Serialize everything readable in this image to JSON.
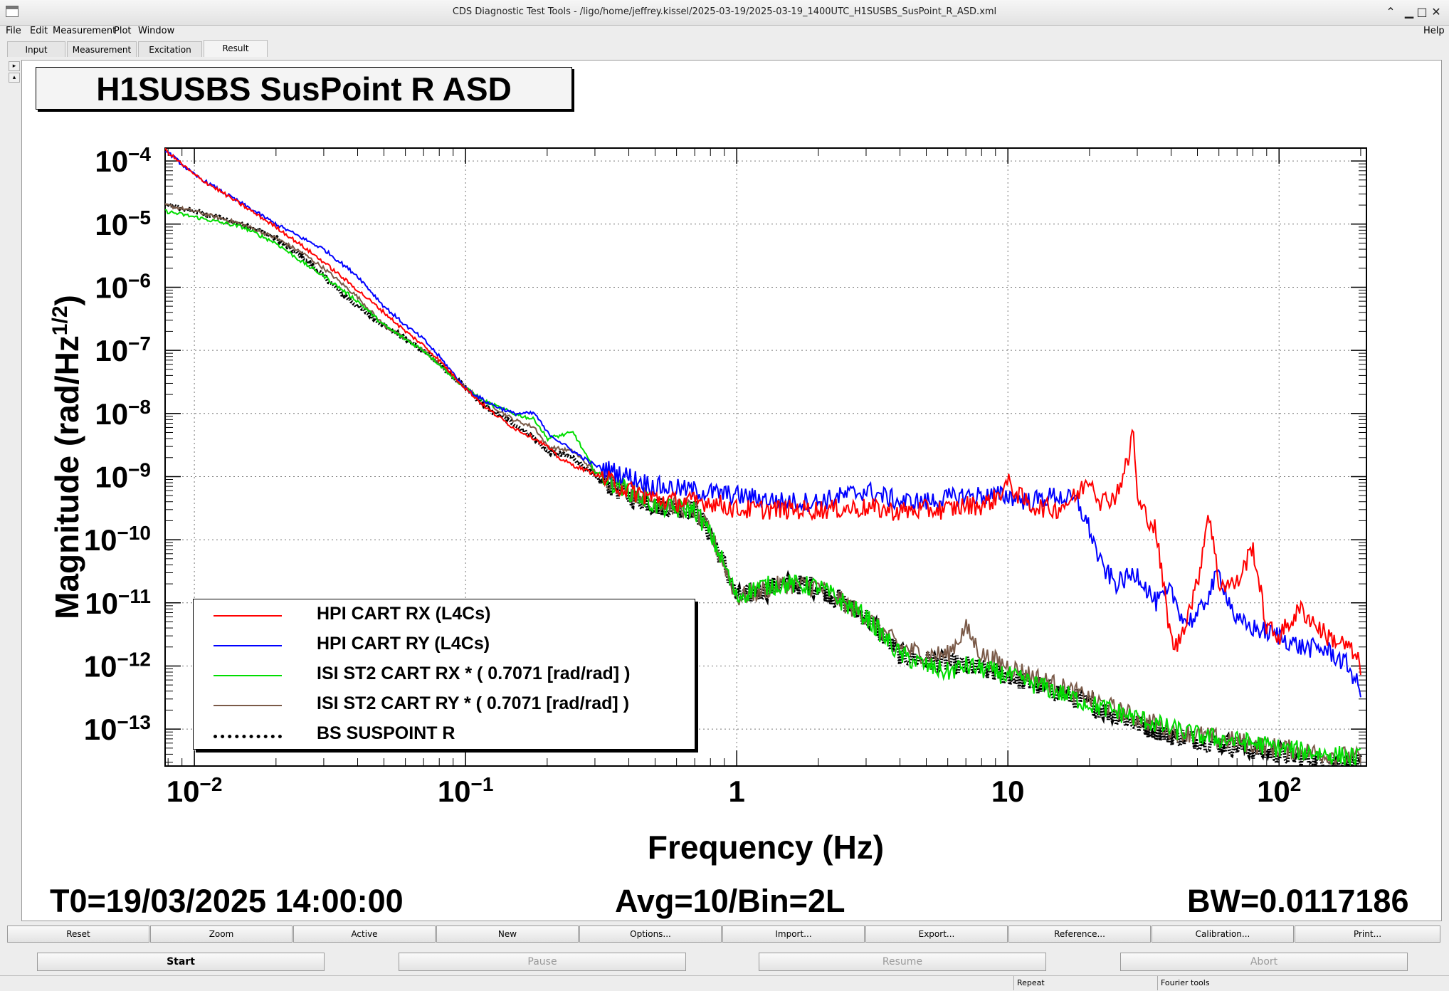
{
  "window": {
    "title": "CDS Diagnostic Test Tools - /ligo/home/jeffrey.kissel/2025-03-19/2025-03-19_1400UTC_H1SUSBS_SusPoint_R_ASD.xml",
    "controls": [
      "⌃",
      "▁",
      "□",
      "✕"
    ]
  },
  "menu": {
    "left": [
      "File",
      "Edit",
      "Measurement",
      "Plot",
      "Window"
    ],
    "right": "Help"
  },
  "tabs": [
    "Input",
    "Measurement",
    "Excitation",
    "Result"
  ],
  "active_tab": "Result",
  "plot": {
    "title": "H1SUSBS SusPoint R ASD",
    "footer": {
      "t0": "T0=19/03/2025 14:00:00",
      "avg": "Avg=10/Bin=2L",
      "bw": "BW=0.0117186"
    }
  },
  "chart_data": {
    "type": "line",
    "title": "H1SUSBS SusPoint R ASD",
    "xlabel": "Frequency (Hz)",
    "ylabel": "Magnitude (rad/Hz^1/2)",
    "x_scale": "log",
    "y_scale": "log",
    "xlim": [
      0.0078,
      210
    ],
    "ylim": [
      2.6e-14,
      0.00016
    ],
    "x_ticks": [
      {
        "value": 0.01,
        "base": "10",
        "exp": "−2"
      },
      {
        "value": 0.1,
        "base": "10",
        "exp": "−1"
      },
      {
        "value": 1,
        "base": "1",
        "exp": ""
      },
      {
        "value": 10,
        "base": "10",
        "exp": ""
      },
      {
        "value": 100,
        "base": "10",
        "exp": "2"
      }
    ],
    "y_ticks": [
      {
        "value": 0.0001,
        "base": "10",
        "exp": "−4"
      },
      {
        "value": 1e-05,
        "base": "10",
        "exp": "−5"
      },
      {
        "value": 1e-06,
        "base": "10",
        "exp": "−6"
      },
      {
        "value": 1e-07,
        "base": "10",
        "exp": "−7"
      },
      {
        "value": 1e-08,
        "base": "10",
        "exp": "−8"
      },
      {
        "value": 1e-09,
        "base": "10",
        "exp": "−9"
      },
      {
        "value": 1e-10,
        "base": "10",
        "exp": "−10"
      },
      {
        "value": 1e-11,
        "base": "10",
        "exp": "−11"
      },
      {
        "value": 1e-12,
        "base": "10",
        "exp": "−12"
      },
      {
        "value": 1e-13,
        "base": "10",
        "exp": "−13"
      }
    ],
    "grid": true,
    "legend_position": "bottom-left",
    "series": [
      {
        "name": "HPI CART RX (L4Cs)",
        "color": "#ff0000",
        "style": "solid",
        "x": [
          0.0078,
          0.01,
          0.015,
          0.02,
          0.025,
          0.03,
          0.04,
          0.05,
          0.06,
          0.07,
          0.08,
          0.1,
          0.12,
          0.15,
          0.18,
          0.2,
          0.22,
          0.25,
          0.3,
          0.35,
          0.4,
          0.5,
          0.6,
          0.7,
          0.8,
          0.9,
          1,
          1.5,
          2,
          3,
          4,
          5,
          6,
          7,
          8,
          9,
          10,
          11,
          12,
          15,
          18,
          20,
          22,
          25,
          28,
          29,
          30,
          35,
          40,
          42,
          45,
          50,
          55,
          60,
          70,
          80,
          90,
          100,
          120,
          150,
          180,
          200
        ],
        "y": [
          0.00015,
          6e-05,
          2e-05,
          9e-06,
          4.5e-06,
          2.5e-06,
          9e-07,
          4e-07,
          2e-07,
          1.2e-07,
          7e-08,
          2.5e-08,
          1.2e-08,
          6e-09,
          4e-09,
          3e-09,
          2e-09,
          1.5e-09,
          1.1e-09,
          8e-10,
          6e-10,
          4.5e-10,
          4e-10,
          4e-10,
          4e-10,
          3.5e-10,
          3e-10,
          3e-10,
          3e-10,
          3.2e-10,
          2.8e-10,
          3e-10,
          3e-10,
          3.5e-10,
          3.5e-10,
          4.5e-10,
          8e-10,
          5e-10,
          3.5e-10,
          3e-10,
          5e-10,
          1e-09,
          4e-10,
          5e-10,
          2e-09,
          7e-09,
          4e-10,
          1.5e-10,
          2.5e-12,
          2e-12,
          5e-12,
          2e-11,
          3e-10,
          2e-11,
          2e-11,
          8e-11,
          4e-12,
          3e-12,
          8e-12,
          3e-12,
          2e-12,
          1e-12
        ]
      },
      {
        "name": "HPI CART RY (L4Cs)",
        "color": "#0000ff",
        "style": "solid",
        "x": [
          0.0078,
          0.01,
          0.015,
          0.02,
          0.025,
          0.03,
          0.04,
          0.05,
          0.06,
          0.07,
          0.08,
          0.1,
          0.12,
          0.15,
          0.18,
          0.2,
          0.25,
          0.3,
          0.4,
          0.5,
          0.7,
          1,
          1.5,
          2,
          3,
          4,
          5,
          7,
          10,
          12,
          15,
          18,
          20,
          22,
          25,
          30,
          35,
          40,
          45,
          50,
          60,
          70,
          80,
          100,
          120,
          150,
          180,
          200
        ],
        "y": [
          0.00015,
          6e-05,
          2.1e-05,
          1e-05,
          6e-06,
          4e-06,
          1.5e-06,
          5e-07,
          2.5e-07,
          1.5e-07,
          8e-08,
          2.5e-08,
          1.5e-08,
          1e-08,
          1e-08,
          5e-09,
          2.5e-09,
          1.5e-09,
          1e-09,
          7e-10,
          6e-10,
          5e-10,
          4e-10,
          4e-10,
          6e-10,
          4e-10,
          4e-10,
          5e-10,
          5e-10,
          4e-10,
          5e-10,
          4e-10,
          1.5e-10,
          4e-11,
          2e-11,
          3e-11,
          1e-11,
          1.5e-11,
          5e-12,
          6e-12,
          3e-11,
          5e-12,
          4e-12,
          3e-12,
          2e-12,
          1.8e-12,
          1e-12,
          4e-13
        ]
      },
      {
        "name": "ISI ST2 CART RX * ( 0.7071 [rad/rad] )",
        "color": "#00dd00",
        "style": "solid",
        "x": [
          0.0078,
          0.01,
          0.015,
          0.02,
          0.025,
          0.03,
          0.04,
          0.05,
          0.06,
          0.07,
          0.08,
          0.1,
          0.12,
          0.15,
          0.18,
          0.2,
          0.25,
          0.3,
          0.35,
          0.4,
          0.5,
          0.6,
          0.7,
          0.8,
          0.9,
          1,
          1.2,
          1.5,
          2,
          3,
          4,
          5,
          6,
          7,
          8,
          10,
          15,
          20,
          30,
          40,
          50,
          60,
          80,
          100,
          150,
          200
        ],
        "y": [
          1.6e-05,
          1.3e-05,
          9e-06,
          5e-06,
          2.5e-06,
          1.5e-06,
          6e-07,
          2.5e-07,
          1.5e-07,
          1e-07,
          6e-08,
          2.5e-08,
          1.5e-08,
          1e-08,
          8e-09,
          4e-09,
          5e-09,
          1.2e-09,
          8e-10,
          6e-10,
          3.5e-10,
          3e-10,
          3e-10,
          1.2e-10,
          4e-11,
          1.2e-11,
          1.8e-11,
          2e-11,
          1.8e-11,
          6e-12,
          1.5e-12,
          1e-12,
          8e-13,
          1e-12,
          9e-13,
          7e-13,
          4e-13,
          2.5e-13,
          1.5e-13,
          1e-13,
          8e-14,
          7e-14,
          6e-14,
          5e-14,
          4e-14,
          3.5e-14
        ]
      },
      {
        "name": "ISI ST2 CART RY * ( 0.7071 [rad/rad] )",
        "color": "#7a5a48",
        "style": "solid",
        "x": [
          0.0078,
          0.01,
          0.015,
          0.02,
          0.025,
          0.03,
          0.04,
          0.05,
          0.06,
          0.07,
          0.08,
          0.1,
          0.12,
          0.15,
          0.18,
          0.2,
          0.25,
          0.3,
          0.4,
          0.5,
          0.7,
          0.8,
          0.9,
          1,
          1.5,
          2,
          3,
          4,
          5,
          6,
          7,
          8,
          10,
          15,
          20,
          30,
          40,
          60,
          100,
          150,
          200
        ],
        "y": [
          2e-05,
          1.6e-05,
          1e-05,
          6e-06,
          3.5e-06,
          2e-06,
          7e-07,
          2.5e-07,
          1.5e-07,
          1e-07,
          6e-08,
          2.5e-08,
          1.5e-08,
          8e-09,
          6e-09,
          3e-09,
          2.5e-09,
          1.2e-09,
          6e-10,
          4e-10,
          3e-10,
          1.2e-10,
          4e-11,
          1.2e-11,
          2e-11,
          1.8e-11,
          6e-12,
          2e-12,
          1.5e-12,
          1.5e-12,
          4e-12,
          1.5e-12,
          1e-12,
          5e-13,
          3e-13,
          1.5e-13,
          1e-13,
          7e-14,
          5e-14,
          4e-14,
          3.5e-14
        ]
      },
      {
        "name": "BS SUSPOINT R",
        "color": "#000000",
        "style": "dotted",
        "x": [
          0.0078,
          0.01,
          0.015,
          0.02,
          0.025,
          0.03,
          0.035,
          0.04,
          0.05,
          0.06,
          0.07,
          0.08,
          0.1,
          0.12,
          0.15,
          0.18,
          0.2,
          0.25,
          0.3,
          0.4,
          0.5,
          0.7,
          0.8,
          0.9,
          1,
          1.5,
          2,
          3,
          4,
          5,
          7,
          10,
          15,
          20,
          30,
          40,
          60,
          100,
          150,
          200
        ],
        "y": [
          2e-05,
          1.6e-05,
          1e-05,
          6e-06,
          3e-06,
          1.5e-06,
          8e-07,
          5e-07,
          2.5e-07,
          1.5e-07,
          1e-07,
          6e-08,
          2.5e-08,
          1.2e-08,
          7e-09,
          4e-09,
          2.5e-09,
          2e-09,
          1e-09,
          5e-10,
          3.5e-10,
          3e-10,
          1.2e-10,
          4e-11,
          1.2e-11,
          2e-11,
          1.8e-11,
          6e-12,
          1.5e-12,
          1.2e-12,
          1e-12,
          7e-13,
          4e-13,
          2.5e-13,
          1.2e-13,
          8e-14,
          6e-14,
          4e-14,
          3e-14,
          2.8e-14
        ]
      }
    ]
  },
  "buttons_row1": [
    "Reset",
    "Zoom",
    "Active",
    "New",
    "Options...",
    "Import...",
    "Export...",
    "Reference...",
    "Calibration...",
    "Print..."
  ],
  "buttons_row2": {
    "start": "Start",
    "pause": "Pause",
    "resume": "Resume",
    "abort": "Abort"
  },
  "status": {
    "repeat": "Repeat",
    "fourier": "Fourier tools"
  }
}
